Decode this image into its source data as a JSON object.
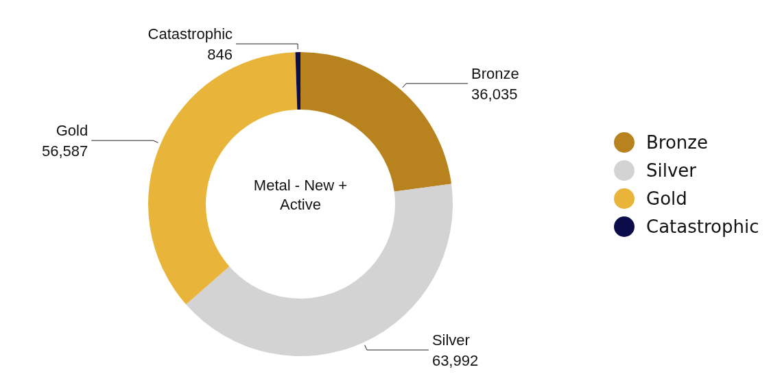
{
  "chart_data": {
    "type": "donut",
    "title": "Metal - New + Active",
    "categories": [
      "Bronze",
      "Silver",
      "Gold",
      "Catastrophic"
    ],
    "values": [
      36035,
      63992,
      56587,
      846
    ],
    "value_labels": [
      "36,035",
      "63,992",
      "56,587",
      "846"
    ],
    "colors": [
      "#b8821f",
      "#d2d3d2",
      "#e8b53a",
      "#0c0c4a"
    ],
    "legend": "right"
  }
}
